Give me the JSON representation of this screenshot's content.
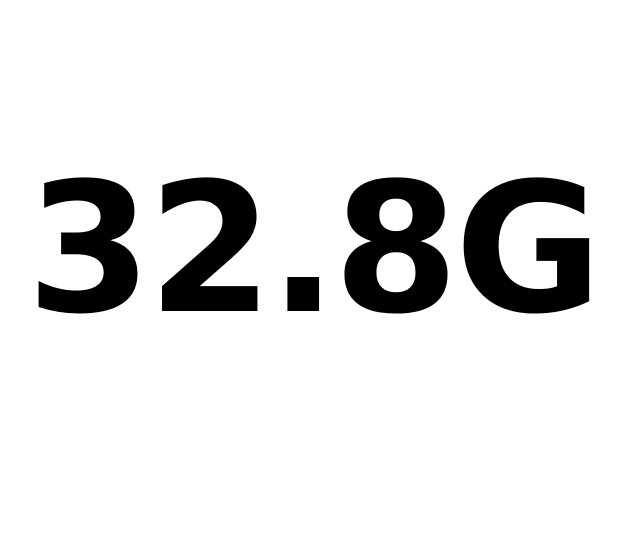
{
  "display": {
    "value": "32.8G",
    "text_color": "#000000",
    "background_color": "#ffffff"
  }
}
